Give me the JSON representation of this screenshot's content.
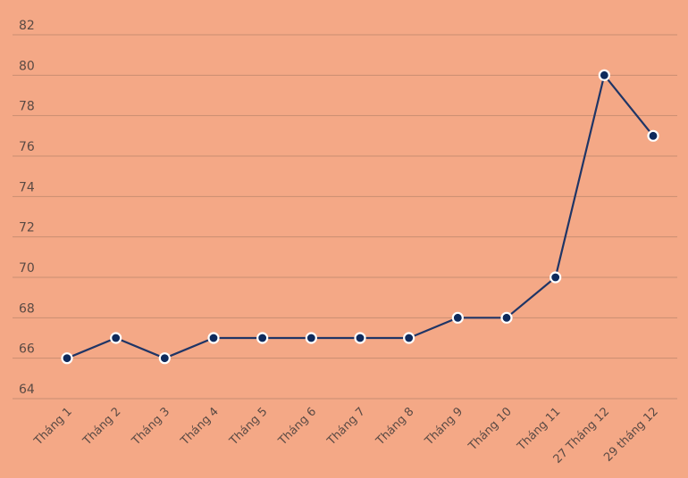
{
  "chart_data": {
    "type": "line",
    "title": "",
    "xlabel": "",
    "ylabel": "",
    "categories": [
      "Tháng 1",
      "Tháng 2",
      "Tháng 3",
      "Tháng 4",
      "Tháng 5",
      "Tháng 6",
      "Tháng 7",
      "Tháng 8",
      "Tháng 9",
      "Tháng 10",
      "Tháng 11",
      "27 Tháng 12",
      "29 tháng 12"
    ],
    "series": [
      {
        "values": [
          66,
          67,
          66,
          67,
          67,
          67,
          67,
          67,
          68,
          68,
          70,
          80,
          77
        ]
      }
    ],
    "y_ticks": [
      64,
      66,
      68,
      70,
      72,
      74,
      76,
      78,
      80,
      82
    ],
    "ylim": [
      64,
      82
    ],
    "grid": true,
    "colors": {
      "background": "#F4A886",
      "line": "#1F3566",
      "marker": "#0E2A5C",
      "grid": "#C98E72"
    }
  }
}
